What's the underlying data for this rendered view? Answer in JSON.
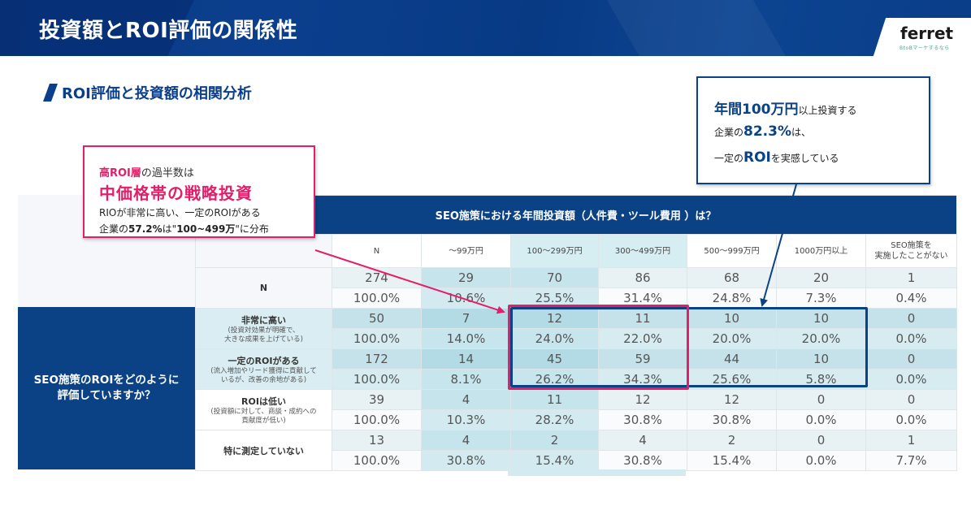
{
  "header": {
    "title": "投資額とROI評価の関係性",
    "logo": "ferret",
    "logo_tagline": "BtoBマーケするなら"
  },
  "section": {
    "title": "ROI評価と投資額の相関分析"
  },
  "callout_pink": {
    "line1_accent": "高ROI層",
    "line1_rest": "の過半数は",
    "headline": "中価格帯の戦略投資",
    "line3": "RIOが非常に高い、一定のROIがある",
    "line4_a": "企業の",
    "line4_pct": "57.2%",
    "line4_b": "は\"",
    "line4_range": "100~499万",
    "line4_c": "\"に分布"
  },
  "callout_blue": {
    "line1_big": "年間100万円",
    "line1_rest": "以上投資する",
    "line2_a": "企業の",
    "line2_big": "82.3%",
    "line2_b": "は、",
    "line3_a": "一定の",
    "line3_big": "ROI",
    "line3_b": "を実感している"
  },
  "table": {
    "top_header": "SEO施策における年間投資額（人件費・ツール費用 ）は？",
    "side_header": "SEO施策のROIをどのように\n評価していますか？",
    "columns": [
      "N",
      "～99万円",
      "100～299万円",
      "300～499万円",
      "500～999万円",
      "1000万円以上",
      "SEO施策を\n実施したことがない"
    ],
    "rows": [
      {
        "label": "N",
        "sub": "",
        "counts": [
          "274",
          "29",
          "70",
          "86",
          "68",
          "20",
          "1"
        ],
        "pcts": [
          "100.0%",
          "10.6%",
          "25.5%",
          "31.4%",
          "24.8%",
          "7.3%",
          "0.4%"
        ]
      },
      {
        "label": "非常に高い",
        "sub": "(投資対効果が明確で、\n大きな成果を上げている)",
        "counts": [
          "50",
          "7",
          "12",
          "11",
          "10",
          "10",
          "0"
        ],
        "pcts": [
          "100.0%",
          "14.0%",
          "24.0%",
          "22.0%",
          "20.0%",
          "20.0%",
          "0.0%"
        ]
      },
      {
        "label": "一定のROIがある",
        "sub": "(流入増加やリード獲得に貢献して\nいるが、改善の余地がある)",
        "counts": [
          "172",
          "14",
          "45",
          "59",
          "44",
          "10",
          "0"
        ],
        "pcts": [
          "100.0%",
          "8.1%",
          "26.2%",
          "34.3%",
          "25.6%",
          "5.8%",
          "0.0%"
        ]
      },
      {
        "label": "ROIは低い",
        "sub": "(投資額に対して、商談・成約への\n貢献度が低い)",
        "counts": [
          "39",
          "4",
          "11",
          "12",
          "12",
          "0",
          "0"
        ],
        "pcts": [
          "100.0%",
          "10.3%",
          "28.2%",
          "30.8%",
          "30.8%",
          "0.0%",
          "0.0%"
        ]
      },
      {
        "label": "特に測定していない",
        "sub": "",
        "counts": [
          "13",
          "4",
          "2",
          "4",
          "2",
          "0",
          "1"
        ],
        "pcts": [
          "100.0%",
          "30.8%",
          "15.4%",
          "30.8%",
          "15.4%",
          "0.0%",
          "7.7%"
        ]
      }
    ]
  },
  "colors": {
    "brand_blue": "#0b4285",
    "accent_pink": "#e31e6b",
    "highlight_teal": "#d6edf2"
  }
}
